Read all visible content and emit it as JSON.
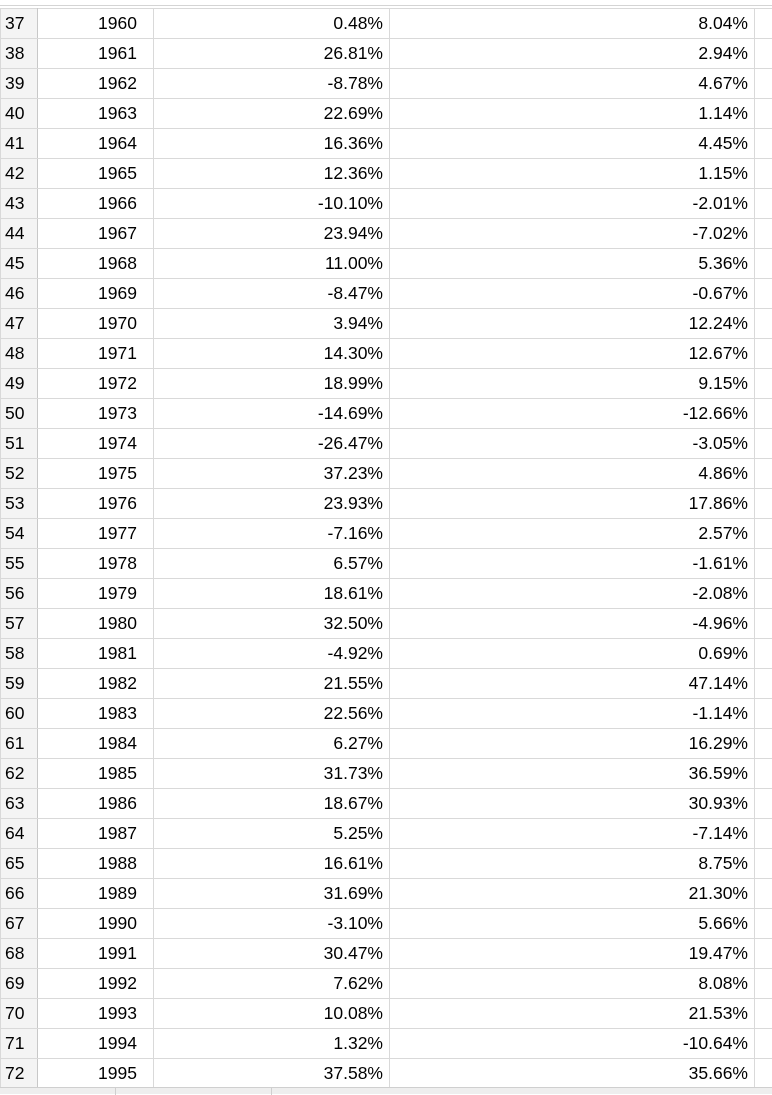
{
  "sheet": {
    "rows": [
      {
        "row": "37",
        "year": "1960",
        "col_b": "0.48%",
        "col_c": "8.04%"
      },
      {
        "row": "38",
        "year": "1961",
        "col_b": "26.81%",
        "col_c": "2.94%"
      },
      {
        "row": "39",
        "year": "1962",
        "col_b": "-8.78%",
        "col_c": "4.67%"
      },
      {
        "row": "40",
        "year": "1963",
        "col_b": "22.69%",
        "col_c": "1.14%"
      },
      {
        "row": "41",
        "year": "1964",
        "col_b": "16.36%",
        "col_c": "4.45%"
      },
      {
        "row": "42",
        "year": "1965",
        "col_b": "12.36%",
        "col_c": "1.15%"
      },
      {
        "row": "43",
        "year": "1966",
        "col_b": "-10.10%",
        "col_c": "-2.01%"
      },
      {
        "row": "44",
        "year": "1967",
        "col_b": "23.94%",
        "col_c": "-7.02%"
      },
      {
        "row": "45",
        "year": "1968",
        "col_b": "11.00%",
        "col_c": "5.36%"
      },
      {
        "row": "46",
        "year": "1969",
        "col_b": "-8.47%",
        "col_c": "-0.67%"
      },
      {
        "row": "47",
        "year": "1970",
        "col_b": "3.94%",
        "col_c": "12.24%"
      },
      {
        "row": "48",
        "year": "1971",
        "col_b": "14.30%",
        "col_c": "12.67%"
      },
      {
        "row": "49",
        "year": "1972",
        "col_b": "18.99%",
        "col_c": "9.15%"
      },
      {
        "row": "50",
        "year": "1973",
        "col_b": "-14.69%",
        "col_c": "-12.66%"
      },
      {
        "row": "51",
        "year": "1974",
        "col_b": "-26.47%",
        "col_c": "-3.05%"
      },
      {
        "row": "52",
        "year": "1975",
        "col_b": "37.23%",
        "col_c": "4.86%"
      },
      {
        "row": "53",
        "year": "1976",
        "col_b": "23.93%",
        "col_c": "17.86%"
      },
      {
        "row": "54",
        "year": "1977",
        "col_b": "-7.16%",
        "col_c": "2.57%"
      },
      {
        "row": "55",
        "year": "1978",
        "col_b": "6.57%",
        "col_c": "-1.61%"
      },
      {
        "row": "56",
        "year": "1979",
        "col_b": "18.61%",
        "col_c": "-2.08%"
      },
      {
        "row": "57",
        "year": "1980",
        "col_b": "32.50%",
        "col_c": "-4.96%"
      },
      {
        "row": "58",
        "year": "1981",
        "col_b": "-4.92%",
        "col_c": "0.69%"
      },
      {
        "row": "59",
        "year": "1982",
        "col_b": "21.55%",
        "col_c": "47.14%"
      },
      {
        "row": "60",
        "year": "1983",
        "col_b": "22.56%",
        "col_c": "-1.14%"
      },
      {
        "row": "61",
        "year": "1984",
        "col_b": "6.27%",
        "col_c": "16.29%"
      },
      {
        "row": "62",
        "year": "1985",
        "col_b": "31.73%",
        "col_c": "36.59%"
      },
      {
        "row": "63",
        "year": "1986",
        "col_b": "18.67%",
        "col_c": "30.93%"
      },
      {
        "row": "64",
        "year": "1987",
        "col_b": "5.25%",
        "col_c": "-7.14%"
      },
      {
        "row": "65",
        "year": "1988",
        "col_b": "16.61%",
        "col_c": "8.75%"
      },
      {
        "row": "66",
        "year": "1989",
        "col_b": "31.69%",
        "col_c": "21.30%"
      },
      {
        "row": "67",
        "year": "1990",
        "col_b": "-3.10%",
        "col_c": "5.66%"
      },
      {
        "row": "68",
        "year": "1991",
        "col_b": "30.47%",
        "col_c": "19.47%"
      },
      {
        "row": "69",
        "year": "1992",
        "col_b": "7.62%",
        "col_c": "8.08%"
      },
      {
        "row": "70",
        "year": "1993",
        "col_b": "10.08%",
        "col_c": "21.53%"
      },
      {
        "row": "71",
        "year": "1994",
        "col_b": "1.32%",
        "col_c": "-10.64%"
      },
      {
        "row": "72",
        "year": "1995",
        "col_b": "37.58%",
        "col_c": "35.66%"
      }
    ]
  }
}
